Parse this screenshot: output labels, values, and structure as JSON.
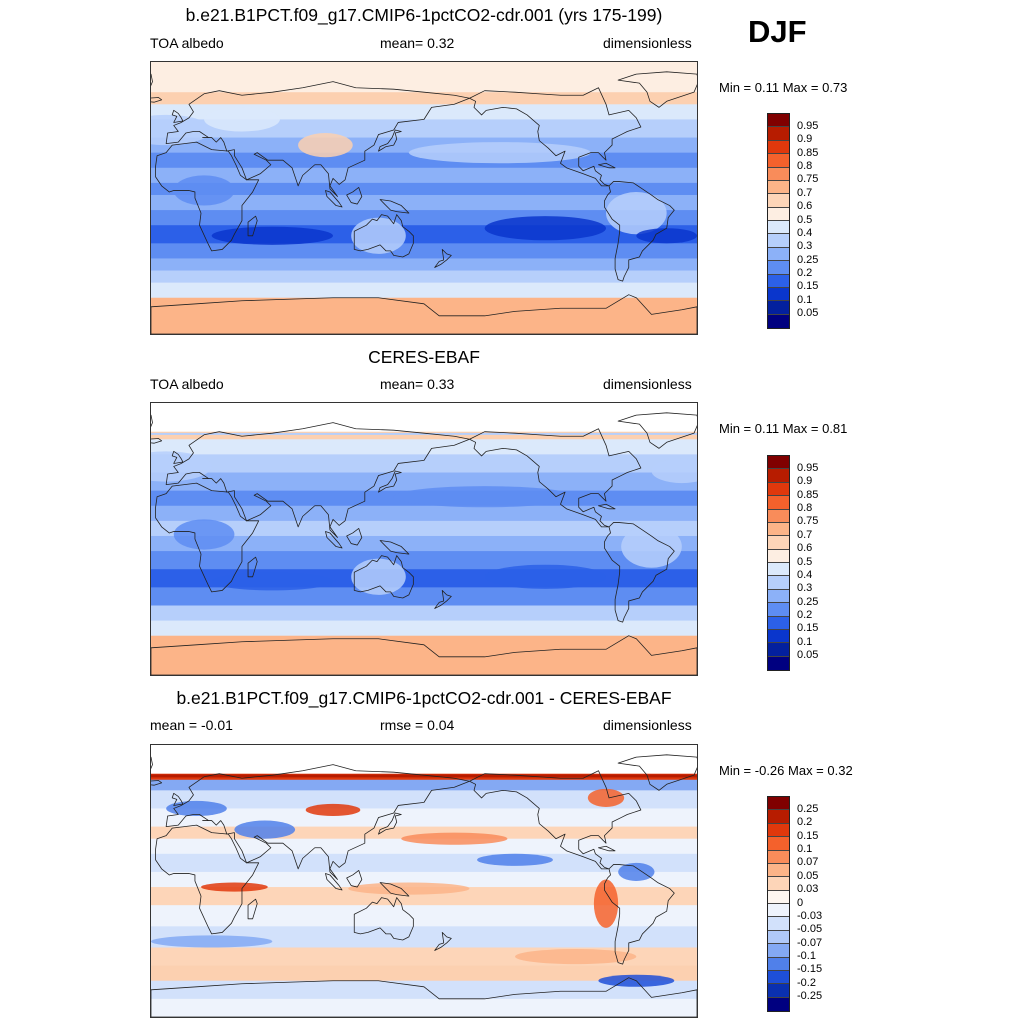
{
  "season": "DJF",
  "panels": [
    {
      "title": "b.e21.B1PCT.f09_g17.CMIP6-1pctCO2-cdr.001 (yrs 175-199)",
      "left_label": "TOA albedo",
      "center_label": "mean=   0.32",
      "right_label": "dimensionless",
      "min_max": "Min =   0.11 Max =   0.73",
      "colorbar_labels": [
        "0.95",
        "0.9",
        "0.85",
        "0.8",
        "0.75",
        "0.7",
        "0.6",
        "0.5",
        "0.4",
        "0.3",
        "0.25",
        "0.2",
        "0.15",
        "0.1",
        "0.05"
      ],
      "colorbar_colors": [
        "#800000",
        "#b71c00",
        "#e0380c",
        "#f4612c",
        "#f98c5a",
        "#fcb488",
        "#fdd5b8",
        "#fdeee2",
        "#dbe9fb",
        "#b6cffb",
        "#8cb1f8",
        "#5e8df2",
        "#2c60e8",
        "#0a36cc",
        "#03209e",
        "#000080"
      ]
    },
    {
      "title": "CERES-EBAF",
      "left_label": "TOA albedo",
      "center_label": "mean=   0.33",
      "right_label": "dimensionless",
      "min_max": "Min =   0.11 Max =   0.81",
      "colorbar_labels": [
        "0.95",
        "0.9",
        "0.85",
        "0.8",
        "0.75",
        "0.7",
        "0.6",
        "0.5",
        "0.4",
        "0.3",
        "0.25",
        "0.2",
        "0.15",
        "0.1",
        "0.05"
      ],
      "colorbar_colors": [
        "#800000",
        "#b71c00",
        "#e0380c",
        "#f4612c",
        "#f98c5a",
        "#fcb488",
        "#fdd5b8",
        "#fdeee2",
        "#dbe9fb",
        "#b6cffb",
        "#8cb1f8",
        "#5e8df2",
        "#2c60e8",
        "#0a36cc",
        "#03209e",
        "#000080"
      ]
    },
    {
      "title": "b.e21.B1PCT.f09_g17.CMIP6-1pctCO2-cdr.001 - CERES-EBAF",
      "left_label": "mean =  -0.01",
      "center_label": "rmse =   0.04",
      "right_label": "dimensionless",
      "min_max": "Min =  -0.26 Max =   0.32",
      "colorbar_labels": [
        "0.25",
        "0.2",
        "0.15",
        "0.1",
        "0.07",
        "0.05",
        "0.03",
        "0",
        "-0.03",
        "-0.05",
        "-0.07",
        "-0.1",
        "-0.15",
        "-0.2",
        "-0.25"
      ],
      "colorbar_colors": [
        "#800000",
        "#b71c00",
        "#e0380c",
        "#f4612c",
        "#f98c5a",
        "#fcb488",
        "#fdd5b8",
        "#fdf6f0",
        "#eef3fc",
        "#d2e1fb",
        "#b0c9f8",
        "#84a9f3",
        "#5080ea",
        "#1e4fd8",
        "#0a30b0",
        "#000080"
      ]
    }
  ]
}
